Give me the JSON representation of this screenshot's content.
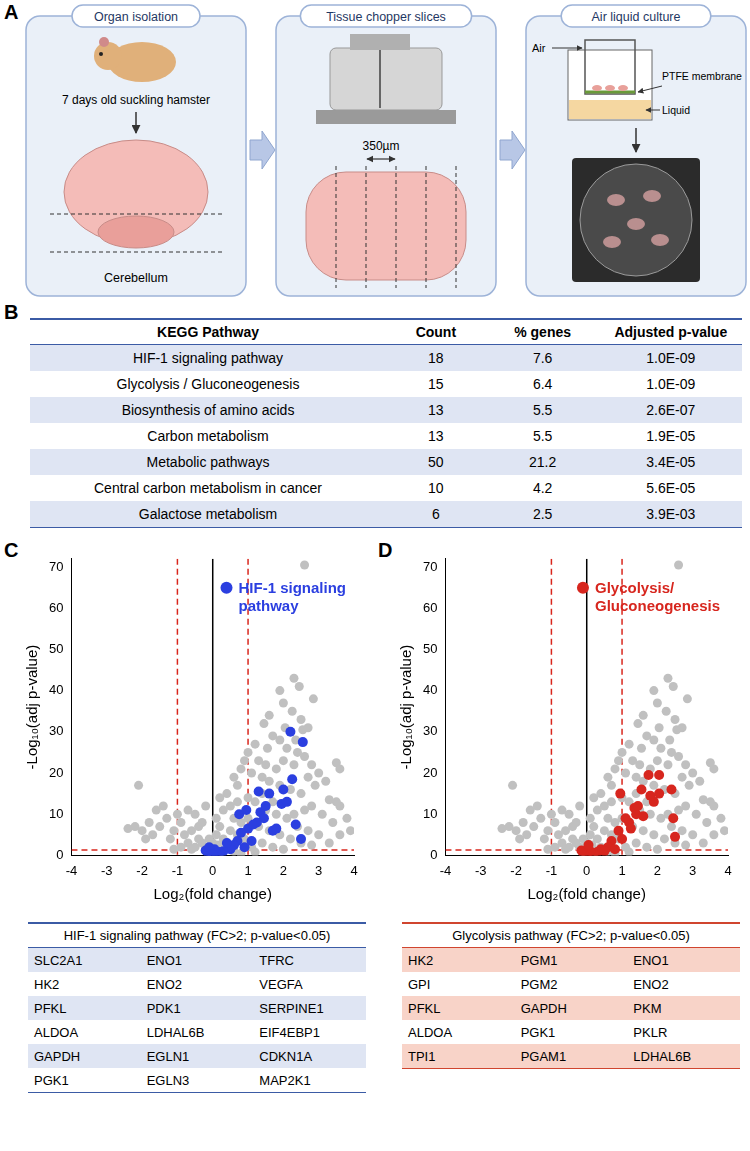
{
  "diagram": {
    "panel_label": "A",
    "steps": [
      {
        "title": "Organ isolation",
        "labels": [
          "7 days old suckling hamster",
          "Cerebellum"
        ]
      },
      {
        "title": "Tissue chopper slices",
        "labels": [
          "350µm"
        ]
      },
      {
        "title": "Air liquid culture",
        "labels": [
          "Air",
          "PTFE membrane",
          "Liquid"
        ]
      }
    ]
  },
  "table": {
    "panel_label": "B",
    "columns": [
      "KEGG Pathway",
      "Count",
      "% genes",
      "Adjusted p-value"
    ],
    "rows": [
      [
        "HIF-1 signaling pathway",
        18,
        7.6,
        "1.0E-09"
      ],
      [
        "Glycolysis / Gluconeogenesis",
        15,
        6.4,
        "1.0E-09"
      ],
      [
        "Biosynthesis of amino acids",
        13,
        5.5,
        "2.6E-07"
      ],
      [
        "Carbon metabolism",
        13,
        5.5,
        "1.9E-05"
      ],
      [
        "Metabolic pathways",
        50,
        21.2,
        "3.4E-05"
      ],
      [
        "Central carbon metabolism in cancer",
        10,
        4.2,
        "5.6E-05"
      ],
      [
        "Galactose metabolism",
        6,
        2.5,
        "3.9E-03"
      ]
    ]
  },
  "chart_data": [
    {
      "panel_label": "C",
      "type": "scatter",
      "xlabel": "Log₂(fold change)",
      "ylabel": "-Log₁₀(adj p-value)",
      "xlim": [
        -4,
        4
      ],
      "xticks": [
        -4,
        -3,
        -2,
        -1,
        0,
        1,
        2,
        3,
        4
      ],
      "ylim": [
        0,
        72
      ],
      "yticks": [
        0,
        10,
        20,
        30,
        40,
        50,
        60,
        70
      ],
      "grid": false,
      "legend": "top-right",
      "reference_lines": [
        {
          "axis": "x",
          "value": -1,
          "color": "#d9261c",
          "line_style": "dashed"
        },
        {
          "axis": "x",
          "value": 1,
          "color": "#d9261c",
          "line_style": "dashed"
        },
        {
          "axis": "y",
          "value": 1.3,
          "color": "#d9261c",
          "line_style": "dashed"
        },
        {
          "axis": "x",
          "value": 0,
          "color": "#000000",
          "line_style": "solid"
        }
      ],
      "series": [
        {
          "color": "#c0c0c0",
          "marker": "circle",
          "x": [
            2.6,
            2.3,
            2.45,
            2.85,
            1.9,
            2.0,
            1.6,
            2.25,
            2.5,
            2.7,
            1.45,
            1.7,
            1.9,
            2.1,
            2.4,
            2.6,
            2.3,
            1.2,
            1.0,
            0.9,
            1.3,
            1.5,
            1.8,
            2.0,
            2.8,
            3.0,
            3.5,
            3.6,
            3.2,
            2.9,
            2.7,
            1.1,
            0.8,
            0.6,
            0.7,
            1.4,
            1.6,
            1.9,
            2.2,
            2.5,
            3.3,
            3.5,
            3.6,
            3.8,
            3.9,
            3.1,
            2.8,
            2.6,
            2.3,
            2.1,
            1.8,
            1.5,
            1.2,
            1.0,
            0.7,
            0.5,
            0.4,
            0.3,
            0.6,
            0.8,
            1.0,
            1.3,
            1.6,
            1.9,
            2.2,
            2.5,
            2.8,
            3.0,
            3.3,
            0.2,
            0.1,
            0.3,
            0.5,
            0.7,
            0.9,
            1.1,
            1.4,
            1.7,
            2.0,
            0.4,
            0.15,
            0.25,
            0.6,
            0.8,
            1.2,
            -0.1,
            -0.2,
            -0.3,
            -0.4,
            -0.5,
            -0.6,
            -0.7,
            -0.8,
            -0.9,
            -1.0,
            -1.1,
            -1.2,
            -1.3,
            -1.4,
            -1.5,
            -1.6,
            -1.7,
            -1.8,
            -1.9,
            -2.0,
            -2.1,
            -2.2,
            -2.4,
            -0.3,
            -0.5,
            -0.2,
            -0.7,
            -0.4,
            -0.1,
            -0.6,
            -0.9,
            -1.1,
            0.0,
            0.1,
            0.2,
            1.4,
            1.7,
            2.4,
            2.7,
            3.4,
            3.6,
            1.55,
            2.35,
            2.55,
            2.05
          ],
          "values": [
            70.5,
            43,
            41,
            38,
            40,
            37,
            34,
            35,
            33,
            31,
            32,
            29,
            28,
            26,
            25,
            24,
            22,
            27,
            25,
            23,
            23,
            22,
            21,
            23,
            22,
            20,
            22.5,
            21,
            18,
            17,
            19,
            20,
            21,
            19,
            17,
            19,
            18,
            17,
            16,
            15,
            13.5,
            13,
            12,
            9,
            6,
            10,
            12,
            11,
            10,
            9,
            10,
            11,
            13,
            14,
            13,
            12,
            15,
            11,
            9,
            8,
            9,
            7,
            6,
            5,
            4,
            3,
            2.5,
            5,
            3,
            7,
            5,
            4,
            6,
            5,
            4,
            2,
            3,
            2,
            1.5,
            2,
            2.5,
            1,
            1,
            0.5,
            0.8,
            1,
            2,
            3,
            4,
            2,
            6,
            3,
            5,
            8,
            10,
            6,
            4,
            9,
            12,
            7,
            11,
            5,
            8,
            4,
            6,
            17,
            7,
            6.5,
            8,
            10,
            12,
            11,
            7,
            4,
            1.5,
            2,
            1.5,
            3,
            9,
            14,
            15,
            13,
            7,
            6,
            8,
            5,
            26,
            28,
            30.5,
            31
          ]
        },
        {
          "name": "HIF-1 signaling pathway",
          "color": "#2b3fe0",
          "marker": "circle",
          "x": [
            2.2,
            2.55,
            2.0,
            1.95,
            2.1,
            2.25,
            1.3,
            1.6,
            1.35,
            1.45,
            1.25,
            1.0,
            1.15,
            1.7,
            1.8,
            2.35,
            2.5,
            0.8,
            0.75,
            0.7,
            0.6,
            0.9,
            0.5,
            0.3,
            0.2,
            0.1,
            0.05,
            -0.05,
            -0.15,
            -0.2,
            -0.1,
            0.0,
            0.4,
            1.1,
            0.95,
            1.5
          ],
          "values": [
            30,
            27.5,
            16,
            12.5,
            13,
            18.5,
            15.5,
            15,
            10.5,
            9,
            8,
            6.5,
            7.5,
            6,
            6.5,
            7.5,
            4,
            5.5,
            10,
            3.5,
            2.5,
            2,
            1.5,
            1,
            0.8,
            0.5,
            1.5,
            0.3,
            0.8,
            1.2,
            2,
            0.2,
            3,
            3.5,
            11,
            12
          ]
        }
      ]
    },
    {
      "panel_label": "D",
      "type": "scatter",
      "xlabel": "Log₂(fold change)",
      "ylabel": "-Log₁₀(adj p-value)",
      "xlim": [
        -4,
        4
      ],
      "xticks": [
        -4,
        -3,
        -2,
        -1,
        0,
        1,
        2,
        3,
        4
      ],
      "ylim": [
        0,
        72
      ],
      "yticks": [
        0,
        10,
        20,
        30,
        40,
        50,
        60,
        70
      ],
      "grid": false,
      "legend": "top-right",
      "reference_lines": [
        {
          "axis": "x",
          "value": -1,
          "color": "#d9261c",
          "line_style": "dashed"
        },
        {
          "axis": "x",
          "value": 1,
          "color": "#d9261c",
          "line_style": "dashed"
        },
        {
          "axis": "y",
          "value": 1.3,
          "color": "#d9261c",
          "line_style": "dashed"
        },
        {
          "axis": "x",
          "value": 0,
          "color": "#000000",
          "line_style": "solid"
        }
      ],
      "series": [
        {
          "color": "#c0c0c0",
          "marker": "circle",
          "x": [
            2.6,
            2.3,
            2.45,
            2.85,
            1.9,
            2.0,
            1.6,
            2.25,
            2.5,
            2.7,
            1.45,
            1.7,
            1.9,
            2.1,
            2.4,
            2.6,
            2.3,
            1.2,
            1.0,
            0.9,
            1.3,
            1.5,
            1.8,
            2.0,
            2.8,
            3.0,
            3.5,
            3.6,
            3.2,
            2.9,
            2.7,
            1.1,
            0.8,
            0.6,
            0.7,
            1.4,
            1.6,
            1.9,
            2.2,
            2.5,
            3.3,
            3.5,
            3.6,
            3.8,
            3.9,
            3.1,
            2.8,
            2.6,
            2.3,
            2.1,
            1.8,
            1.5,
            1.2,
            1.0,
            0.7,
            0.5,
            0.4,
            0.3,
            0.6,
            0.8,
            1.0,
            1.3,
            1.6,
            1.9,
            2.2,
            2.5,
            2.8,
            3.0,
            3.3,
            0.2,
            0.1,
            0.3,
            0.5,
            0.7,
            0.9,
            1.1,
            1.4,
            1.7,
            2.0,
            0.4,
            0.15,
            0.25,
            0.6,
            0.8,
            1.2,
            -0.1,
            -0.2,
            -0.3,
            -0.4,
            -0.5,
            -0.6,
            -0.7,
            -0.8,
            -0.9,
            -1.0,
            -1.1,
            -1.2,
            -1.3,
            -1.4,
            -1.5,
            -1.6,
            -1.7,
            -1.8,
            -1.9,
            -2.0,
            -2.1,
            -2.2,
            -2.4,
            -0.3,
            -0.5,
            -0.2,
            -0.7,
            -0.4,
            -0.1,
            -0.6,
            -0.9,
            -1.1,
            0.0,
            0.1,
            0.2,
            1.4,
            1.7,
            2.4,
            2.7,
            3.4,
            3.6,
            1.55,
            2.35,
            2.55,
            2.05
          ],
          "values": [
            70.5,
            43,
            41,
            38,
            40,
            37,
            34,
            35,
            33,
            31,
            32,
            29,
            28,
            26,
            25,
            24,
            22,
            27,
            25,
            23,
            23,
            22,
            21,
            23,
            22,
            20,
            22.5,
            21,
            18,
            17,
            19,
            20,
            21,
            19,
            17,
            19,
            18,
            17,
            16,
            15,
            13.5,
            13,
            12,
            9,
            6,
            10,
            12,
            11,
            10,
            9,
            10,
            11,
            13,
            14,
            13,
            12,
            15,
            11,
            9,
            8,
            9,
            7,
            6,
            5,
            4,
            3,
            2.5,
            5,
            3,
            7,
            5,
            4,
            6,
            5,
            4,
            2,
            3,
            2,
            1.5,
            2,
            2.5,
            1,
            1,
            0.5,
            0.8,
            1,
            2,
            3,
            4,
            2,
            6,
            3,
            5,
            8,
            10,
            6,
            4,
            9,
            12,
            7,
            11,
            5,
            8,
            4,
            6,
            17,
            7,
            6.5,
            8,
            10,
            12,
            11,
            7,
            4,
            1.5,
            2,
            1.5,
            3,
            9,
            14,
            15,
            13,
            7,
            6,
            8,
            5,
            26,
            28,
            30.5,
            31
          ]
        },
        {
          "name": "Glycolysis/ Gluconeogenesis",
          "color": "#d7261e",
          "marker": "circle",
          "x": [
            1.75,
            2.05,
            1.55,
            1.35,
            1.4,
            1.6,
            1.45,
            1.2,
            1.25,
            1.9,
            1.8,
            2.4,
            2.45,
            2.5,
            2.05,
            1.0,
            0.95,
            1.1,
            0.9,
            0.7,
            0.6,
            0.4,
            0.3,
            0.2,
            0.1,
            0.0,
            -0.1,
            -0.15,
            0.05,
            0.5,
            0.8
          ],
          "values": [
            19.5,
            19.5,
            16,
            11.5,
            10,
            9.5,
            12,
            8,
            6.5,
            13,
            14.5,
            16,
            9,
            4.5,
            15,
            4,
            15,
            9,
            6,
            3.5,
            2,
            1.5,
            0.8,
            0.5,
            1,
            0.3,
            0.6,
            1.2,
            2.5,
            1,
            1.5
          ]
        }
      ]
    }
  ],
  "gene_tables": [
    {
      "title": "HIF-1 signaling pathway (FC>2; p-value<0.05)",
      "rows": [
        [
          "SLC2A1",
          "ENO1",
          "TFRC"
        ],
        [
          "HK2",
          "ENO2",
          "VEGFA"
        ],
        [
          "PFKL",
          "PDK1",
          "SERPINE1"
        ],
        [
          "ALDOA",
          "LDHAL6B",
          "EIF4EBP1"
        ],
        [
          "GAPDH",
          "EGLN1",
          "CDKN1A"
        ],
        [
          "PGK1",
          "EGLN3",
          "MAP2K1"
        ]
      ]
    },
    {
      "title": "Glycolysis pathway (FC>2; p-value<0.05)",
      "rows": [
        [
          "HK2",
          "PGM1",
          "ENO1"
        ],
        [
          "GPI",
          "PGM2",
          "ENO2"
        ],
        [
          "PFKL",
          "GAPDH",
          "PKM"
        ],
        [
          "ALDOA",
          "PGK1",
          "PKLR"
        ],
        [
          "TPI1",
          "PGAM1",
          "LDHAL6B"
        ]
      ]
    }
  ]
}
